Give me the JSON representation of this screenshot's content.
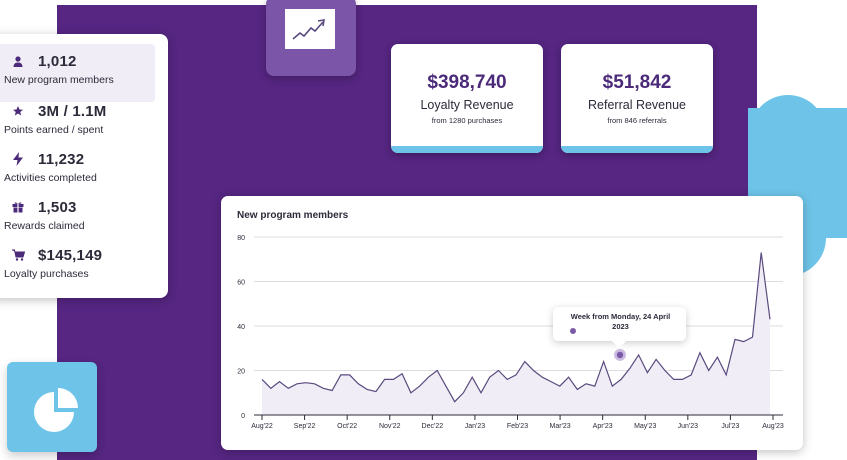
{
  "stats": [
    {
      "icon": "person-icon",
      "value": "1,012",
      "label": "New program members",
      "highlighted": true
    },
    {
      "icon": "star-icon",
      "value": "3M / 1.1M",
      "label": "Points earned / spent"
    },
    {
      "icon": "lightning-icon",
      "value": "11,232",
      "label": "Activities completed"
    },
    {
      "icon": "gift-icon",
      "value": "1,503",
      "label": "Rewards claimed"
    },
    {
      "icon": "cart-icon",
      "value": "$145,149",
      "label": "Loyalty purchases"
    }
  ],
  "revenue_cards": [
    {
      "amount": "$398,740",
      "title": "Loyalty Revenue",
      "sub": "from 1280 purchases"
    },
    {
      "amount": "$51,842",
      "title": "Referral Revenue",
      "sub": "from 846 referrals"
    }
  ],
  "chart": {
    "title": "New program members",
    "tooltip": "Week from Monday, 24 April 2023"
  },
  "colors": {
    "purple_bg": "#562682",
    "accent_purple": "#4b2a7a",
    "line": "#5a4a7e",
    "area": "#f1edf6",
    "sky_blue": "#6ec4e8"
  },
  "chart_data": {
    "type": "area",
    "title": "New program members",
    "xlabel": "",
    "ylabel": "",
    "ylim": [
      0,
      80
    ],
    "yticks": [
      0,
      20,
      40,
      60,
      80
    ],
    "xticks": [
      "Aug'22",
      "Sep'22",
      "Oct'22",
      "Nov'22",
      "Dec'22",
      "Jan'23",
      "Feb'23",
      "Mar'23",
      "Apr'23",
      "May'23",
      "Jun'23",
      "Jul'23",
      "Aug'23"
    ],
    "grid": true,
    "series": [
      {
        "name": "New program members",
        "values": [
          16,
          12,
          15,
          12,
          14,
          14.5,
          14,
          12,
          11,
          18,
          18,
          14,
          11.5,
          10.5,
          16,
          16,
          18.5,
          10,
          13,
          17,
          20,
          13,
          6,
          10,
          17,
          10,
          17,
          20,
          16,
          18,
          24,
          20,
          17,
          15,
          13,
          17,
          11.5,
          14,
          13,
          24,
          13,
          16,
          21,
          27,
          19,
          25,
          20,
          16,
          16,
          18,
          28,
          20,
          26,
          18,
          34,
          33,
          35,
          73,
          43
        ]
      }
    ],
    "highlight": {
      "label": "Week from Monday, 24 April 2023",
      "value": 27
    }
  }
}
